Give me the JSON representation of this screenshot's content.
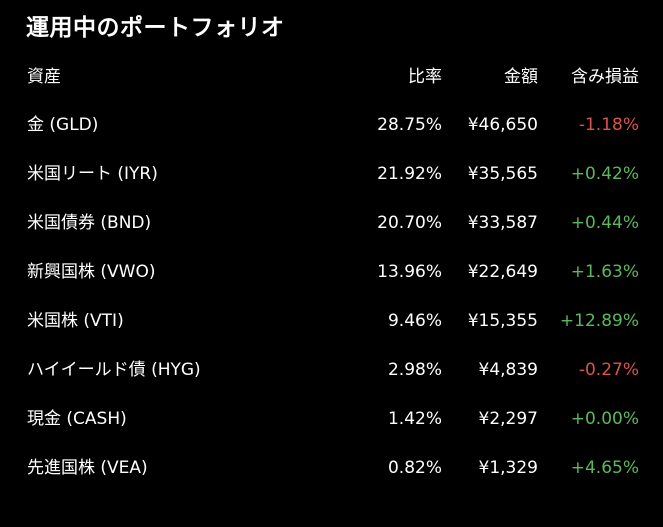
{
  "title": "運用中のポートフォリオ",
  "headers": {
    "asset": "資産",
    "ratio": "比率",
    "amount": "金額",
    "unrealized_pl": "含み損益"
  },
  "colors": {
    "background": "#000000",
    "text": "#ffffff",
    "negative": "#d9534f",
    "positive": "#5cb85c"
  },
  "rows": [
    {
      "asset": "金 (GLD)",
      "ratio": "28.75%",
      "amount": "¥46,650",
      "pl": "-1.18%",
      "pl_sign": "negative"
    },
    {
      "asset": "米国リート (IYR)",
      "ratio": "21.92%",
      "amount": "¥35,565",
      "pl": "+0.42%",
      "pl_sign": "positive"
    },
    {
      "asset": "米国債券 (BND)",
      "ratio": "20.70%",
      "amount": "¥33,587",
      "pl": "+0.44%",
      "pl_sign": "positive"
    },
    {
      "asset": "新興国株 (VWO)",
      "ratio": "13.96%",
      "amount": "¥22,649",
      "pl": "+1.63%",
      "pl_sign": "positive"
    },
    {
      "asset": "米国株 (VTI)",
      "ratio": "9.46%",
      "amount": "¥15,355",
      "pl": "+12.89%",
      "pl_sign": "positive"
    },
    {
      "asset": "ハイイールド債 (HYG)",
      "ratio": "2.98%",
      "amount": "¥4,839",
      "pl": "-0.27%",
      "pl_sign": "negative"
    },
    {
      "asset": "現金 (CASH)",
      "ratio": "1.42%",
      "amount": "¥2,297",
      "pl": "+0.00%",
      "pl_sign": "positive"
    },
    {
      "asset": "先進国株 (VEA)",
      "ratio": "0.82%",
      "amount": "¥1,329",
      "pl": "+4.65%",
      "pl_sign": "positive"
    }
  ]
}
